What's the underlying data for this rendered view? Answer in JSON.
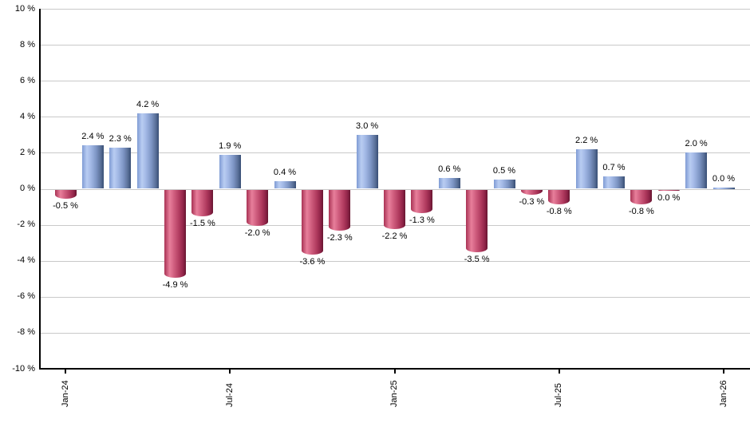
{
  "chart_data": {
    "type": "bar",
    "title": "",
    "xlabel": "",
    "ylabel": "",
    "ylim": [
      -10,
      10
    ],
    "ytick_step": 2,
    "grid": true,
    "legend": "none",
    "colors": {
      "positive_bar": "#7f9bd4",
      "positive_highlight": "#b9cdf2",
      "positive_edge": "#374e74",
      "negative_bar": "#b03a5e",
      "negative_highlight": "#e87f9b",
      "negative_edge": "#671631",
      "gridline": "#c9c9c9",
      "axis": "#000000",
      "text": "#000000",
      "background": "#ffffff"
    },
    "y_axis_ticks": [
      "10 %",
      "8 %",
      "6 %",
      "4 %",
      "2 %",
      "0 %",
      "-2 %",
      "-4 %",
      "-6 %",
      "-8 %",
      "-10 %"
    ],
    "x_axis_ticks": [
      "Jan-24",
      "Jul-24",
      "Jan-25",
      "Jul-25",
      "Jan-26"
    ],
    "months": [
      {
        "month": "Jan-24",
        "value": -0.5,
        "label": "-0.5 %",
        "color": "negative"
      },
      {
        "month": "Feb-24",
        "value": 2.4,
        "label": "2.4 %",
        "color": "positive"
      },
      {
        "month": "Mar-24",
        "value": 2.3,
        "label": "2.3 %",
        "color": "positive"
      },
      {
        "month": "Apr-24",
        "value": 4.2,
        "label": "4.2 %",
        "color": "positive"
      },
      {
        "month": "May-24",
        "value": -4.9,
        "label": "-4.9 %",
        "color": "negative"
      },
      {
        "month": "Jun-24",
        "value": -1.5,
        "label": "-1.5 %",
        "color": "negative"
      },
      {
        "month": "Jul-24",
        "value": 1.9,
        "label": "1.9 %",
        "color": "positive"
      },
      {
        "month": "Aug-24",
        "value": -2.0,
        "label": "-2.0 %",
        "color": "negative"
      },
      {
        "month": "Sep-24",
        "value": 0.4,
        "label": "0.4 %",
        "color": "positive"
      },
      {
        "month": "Oct-24",
        "value": -3.6,
        "label": "-3.6 %",
        "color": "negative"
      },
      {
        "month": "Nov-24",
        "value": -2.3,
        "label": "-2.3 %",
        "color": "negative"
      },
      {
        "month": "Dec-24",
        "value": 3.0,
        "label": "3.0 %",
        "color": "positive"
      },
      {
        "month": "Jan-25",
        "value": -2.2,
        "label": "-2.2 %",
        "color": "negative"
      },
      {
        "month": "Feb-25",
        "value": -1.3,
        "label": "-1.3 %",
        "color": "negative"
      },
      {
        "month": "Mar-25",
        "value": 0.6,
        "label": "0.6 %",
        "color": "positive"
      },
      {
        "month": "Apr-25",
        "value": -3.5,
        "label": "-3.5 %",
        "color": "negative"
      },
      {
        "month": "May-25",
        "value": 0.5,
        "label": "0.5 %",
        "color": "positive"
      },
      {
        "month": "Jun-25",
        "value": -0.3,
        "label": "-0.3 %",
        "color": "negative"
      },
      {
        "month": "Jul-25",
        "value": -0.8,
        "label": "-0.8 %",
        "color": "negative"
      },
      {
        "month": "Aug-25",
        "value": 2.2,
        "label": "2.2 %",
        "color": "positive"
      },
      {
        "month": "Sep-25",
        "value": 0.7,
        "label": "0.7 %",
        "color": "positive"
      },
      {
        "month": "Oct-25",
        "value": -0.8,
        "label": "-0.8 %",
        "color": "negative"
      },
      {
        "month": "Nov-25",
        "value": 0.0,
        "label": "0.0 %",
        "color": "negative"
      },
      {
        "month": "Dec-25",
        "value": 2.0,
        "label": "2.0 %",
        "color": "positive"
      },
      {
        "month": "Jan-26",
        "value": 0.0,
        "label": "0.0 %",
        "color": "positive"
      }
    ]
  }
}
